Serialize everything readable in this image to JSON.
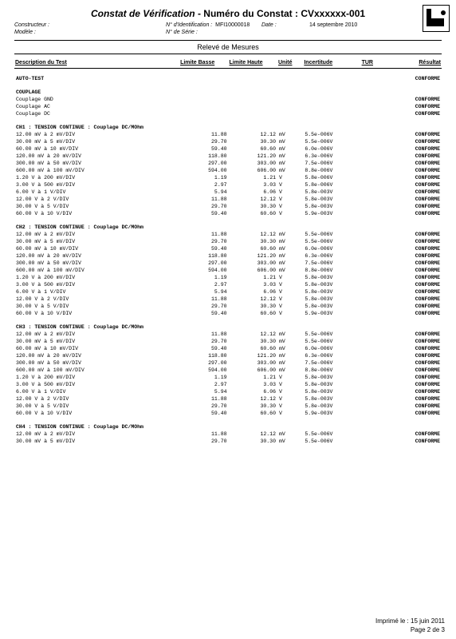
{
  "doc": {
    "title_lead": "Constat de Vérification",
    "title_tail": " - Numéro du Constat : ",
    "constat_no": "CVxxxxxx-001"
  },
  "meta": {
    "constructeur_lbl": "Constructeur :",
    "modele_lbl": "Modèle :",
    "ident_lbl": "N° d'Identification :",
    "ident_val": "MFI10000018",
    "serie_lbl": "N° de Série :",
    "date_lbl": "Date :",
    "date_val": "14 septembre 2010"
  },
  "section_title": "Relevé de Mesures",
  "columns": {
    "desc": "Description du Test",
    "lbasse": "Limite Basse",
    "lhaute": "Limite Haute",
    "unit": "Unité",
    "inc": "Incertitude",
    "tur": "TUR",
    "res": "Résultat"
  },
  "conf": "CONFORME",
  "groups": [
    {
      "type": "single",
      "label": "AUTO-TEST",
      "res": "CONFORME"
    },
    {
      "type": "header",
      "label": "COUPLAGE"
    },
    {
      "type": "subres",
      "label": "Couplage GND",
      "res": "CONFORME"
    },
    {
      "type": "subres",
      "label": "Couplage AC",
      "res": "CONFORME"
    },
    {
      "type": "subres",
      "label": "Couplage DC",
      "res": "CONFORME"
    },
    {
      "type": "block",
      "label": "CH1 : TENSION CONTINUE : Couplage DC/MOhm",
      "rows": [
        {
          "d": "12.00 mV à 2 mV/DIV",
          "lb": "11.88",
          "lh": "12.12",
          "u": "mV",
          "inc": "5.5e-006V"
        },
        {
          "d": "30.00 mV à 5 mV/DIV",
          "lb": "29.70",
          "lh": "30.30",
          "u": "mV",
          "inc": "5.5e-006V"
        },
        {
          "d": "60.00 mV à 10 mV/DIV",
          "lb": "59.40",
          "lh": "60.60",
          "u": "mV",
          "inc": "6.0e-006V"
        },
        {
          "d": "120.00 mV à 20 mV/DIV",
          "lb": "118.80",
          "lh": "121.20",
          "u": "mV",
          "inc": "6.3e-006V"
        },
        {
          "d": "300.00 mV à 50 mV/DIV",
          "lb": "297.00",
          "lh": "303.00",
          "u": "mV",
          "inc": "7.5e-006V"
        },
        {
          "d": "600.00 mV à 100 mV/DIV",
          "lb": "594.00",
          "lh": "606.00",
          "u": "mV",
          "inc": "8.8e-006V"
        },
        {
          "d": "1.20 V à 200 mV/DIV",
          "lb": "1.19",
          "lh": "1.21",
          "u": "V",
          "inc": "5.8e-006V"
        },
        {
          "d": "3.00 V à 500 mV/DIV",
          "lb": "2.97",
          "lh": "3.03",
          "u": "V",
          "inc": "5.8e-006V"
        },
        {
          "d": "6.00 V à 1 V/DIV",
          "lb": "5.94",
          "lh": "6.06",
          "u": "V",
          "inc": "5.8e-003V"
        },
        {
          "d": "12.00 V à 2 V/DIV",
          "lb": "11.88",
          "lh": "12.12",
          "u": "V",
          "inc": "5.8e-003V"
        },
        {
          "d": "30.00 V à 5 V/DIV",
          "lb": "29.70",
          "lh": "30.30",
          "u": "V",
          "inc": "5.8e-003V"
        },
        {
          "d": "60.00 V à 10 V/DIV",
          "lb": "59.40",
          "lh": "60.60",
          "u": "V",
          "inc": "5.9e-003V"
        }
      ]
    },
    {
      "type": "block",
      "label": "CH2 : TENSION CONTINUE : Couplage DC/MOhm",
      "rows": [
        {
          "d": "12.00 mV à 2 mV/DIV",
          "lb": "11.88",
          "lh": "12.12",
          "u": "mV",
          "inc": "5.5e-006V"
        },
        {
          "d": "30.00 mV à 5 mV/DIV",
          "lb": "29.70",
          "lh": "30.30",
          "u": "mV",
          "inc": "5.5e-006V"
        },
        {
          "d": "60.00 mV à 10 mV/DIV",
          "lb": "59.40",
          "lh": "60.60",
          "u": "mV",
          "inc": "6.0e-006V"
        },
        {
          "d": "120.00 mV à 20 mV/DIV",
          "lb": "118.80",
          "lh": "121.20",
          "u": "mV",
          "inc": "6.3e-006V"
        },
        {
          "d": "300.00 mV à 50 mV/DIV",
          "lb": "297.00",
          "lh": "303.00",
          "u": "mV",
          "inc": "7.5e-006V"
        },
        {
          "d": "600.00 mV à 100 mV/DIV",
          "lb": "594.00",
          "lh": "606.00",
          "u": "mV",
          "inc": "8.8e-006V"
        },
        {
          "d": "1.20 V à 200 mV/DIV",
          "lb": "1.19",
          "lh": "1.21",
          "u": "V",
          "inc": "5.8e-003V"
        },
        {
          "d": "3.00 V à 500 mV/DIV",
          "lb": "2.97",
          "lh": "3.03",
          "u": "V",
          "inc": "5.8e-003V"
        },
        {
          "d": "6.00 V à 1 V/DIV",
          "lb": "5.94",
          "lh": "6.06",
          "u": "V",
          "inc": "5.8e-003V"
        },
        {
          "d": "12.00 V à 2 V/DIV",
          "lb": "11.88",
          "lh": "12.12",
          "u": "V",
          "inc": "5.8e-003V"
        },
        {
          "d": "30.00 V à 5 V/DIV",
          "lb": "29.70",
          "lh": "30.30",
          "u": "V",
          "inc": "5.8e-003V"
        },
        {
          "d": "60.00 V à 10 V/DIV",
          "lb": "59.40",
          "lh": "60.60",
          "u": "V",
          "inc": "5.9e-003V"
        }
      ]
    },
    {
      "type": "block",
      "label": "CH3 : TENSION CONTINUE : Couplage DC/MOhm",
      "rows": [
        {
          "d": "12.00 mV à 2 mV/DIV",
          "lb": "11.88",
          "lh": "12.12",
          "u": "mV",
          "inc": "5.5e-006V"
        },
        {
          "d": "30.00 mV à 5 mV/DIV",
          "lb": "29.70",
          "lh": "30.30",
          "u": "mV",
          "inc": "5.5e-006V"
        },
        {
          "d": "60.00 mV à 10 mV/DIV",
          "lb": "59.40",
          "lh": "60.60",
          "u": "mV",
          "inc": "6.0e-006V"
        },
        {
          "d": "120.00 mV à 20 mV/DIV",
          "lb": "118.80",
          "lh": "121.20",
          "u": "mV",
          "inc": "6.3e-006V"
        },
        {
          "d": "300.00 mV à 50 mV/DIV",
          "lb": "297.00",
          "lh": "303.00",
          "u": "mV",
          "inc": "7.5e-006V"
        },
        {
          "d": "600.00 mV à 100 mV/DIV",
          "lb": "594.00",
          "lh": "606.00",
          "u": "mV",
          "inc": "8.8e-006V"
        },
        {
          "d": "1.20 V à 200 mV/DIV",
          "lb": "1.19",
          "lh": "1.21",
          "u": "V",
          "inc": "5.8e-003V"
        },
        {
          "d": "3.00 V à 500 mV/DIV",
          "lb": "2.97",
          "lh": "3.03",
          "u": "V",
          "inc": "5.8e-003V"
        },
        {
          "d": "6.00 V à 1 V/DIV",
          "lb": "5.94",
          "lh": "6.06",
          "u": "V",
          "inc": "5.8e-003V"
        },
        {
          "d": "12.00 V à 2 V/DIV",
          "lb": "11.88",
          "lh": "12.12",
          "u": "V",
          "inc": "5.8e-003V"
        },
        {
          "d": "30.00 V à 5 V/DIV",
          "lb": "29.70",
          "lh": "30.30",
          "u": "V",
          "inc": "5.8e-003V"
        },
        {
          "d": "60.00 V à 10 V/DIV",
          "lb": "59.40",
          "lh": "60.60",
          "u": "V",
          "inc": "5.9e-003V"
        }
      ]
    },
    {
      "type": "block",
      "label": "CH4 : TENSION CONTINUE : Couplage DC/MOhm",
      "rows": [
        {
          "d": "12.00 mV à 2 mV/DIV",
          "lb": "11.88",
          "lh": "12.12",
          "u": "mV",
          "inc": "5.5e-006V"
        },
        {
          "d": "30.00 mV à 5 mV/DIV",
          "lb": "29.70",
          "lh": "30.30",
          "u": "mV",
          "inc": "5.5e-006V"
        }
      ]
    }
  ],
  "footer": {
    "printed": "Imprimé le : 15 juin 2011",
    "page": "Page 2 de 3"
  }
}
